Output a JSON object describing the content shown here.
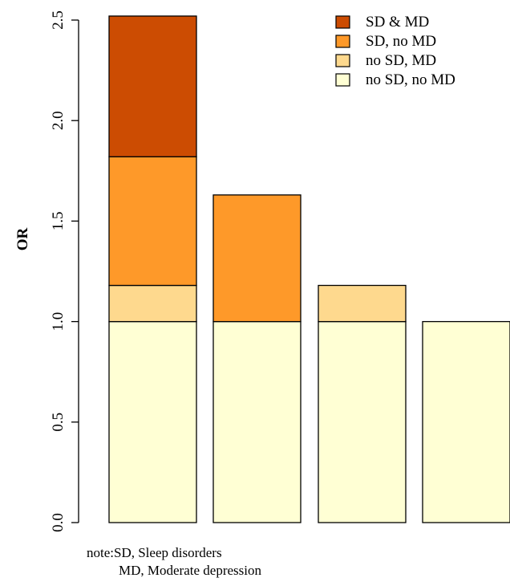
{
  "chart_data": {
    "type": "bar",
    "stacked": true,
    "ylabel": "OR",
    "ylim": [
      0,
      2.5
    ],
    "yticks": [
      "0.0",
      "0.5",
      "1.0",
      "1.5",
      "2.0",
      "2.5"
    ],
    "ytick_values": [
      0,
      0.5,
      1.0,
      1.5,
      2.0,
      2.5
    ],
    "categories": [
      "",
      "",
      "",
      ""
    ],
    "bars": [
      {
        "segments": [
          {
            "series": "no SD, no MD",
            "from": 0,
            "to": 1.0
          },
          {
            "series": "no SD, MD",
            "from": 1.0,
            "to": 1.18
          },
          {
            "series": "SD, no MD",
            "from": 1.18,
            "to": 1.82
          },
          {
            "series": "SD & MD",
            "from": 1.82,
            "to": 2.52
          }
        ]
      },
      {
        "segments": [
          {
            "series": "no SD, no MD",
            "from": 0,
            "to": 1.0
          },
          {
            "series": "SD, no MD",
            "from": 1.0,
            "to": 1.63
          }
        ]
      },
      {
        "segments": [
          {
            "series": "no SD, no MD",
            "from": 0,
            "to": 1.0
          },
          {
            "series": "no SD, MD",
            "from": 1.0,
            "to": 1.18
          }
        ]
      },
      {
        "segments": [
          {
            "series": "no SD, no MD",
            "from": 0,
            "to": 1.0
          }
        ]
      }
    ],
    "legend": {
      "placement": "top-right",
      "entries": [
        {
          "label": "SD & MD",
          "color": "#cc4c02"
        },
        {
          "label": "SD, no MD",
          "color": "#fe9929"
        },
        {
          "label": "no SD, MD",
          "color": "#fed98e"
        },
        {
          "label": "no SD, no MD",
          "color": "#ffffd4"
        }
      ]
    },
    "grid": false
  },
  "note": {
    "line1": "note:SD, Sleep disorders",
    "line2": "MD, Moderate depression"
  }
}
